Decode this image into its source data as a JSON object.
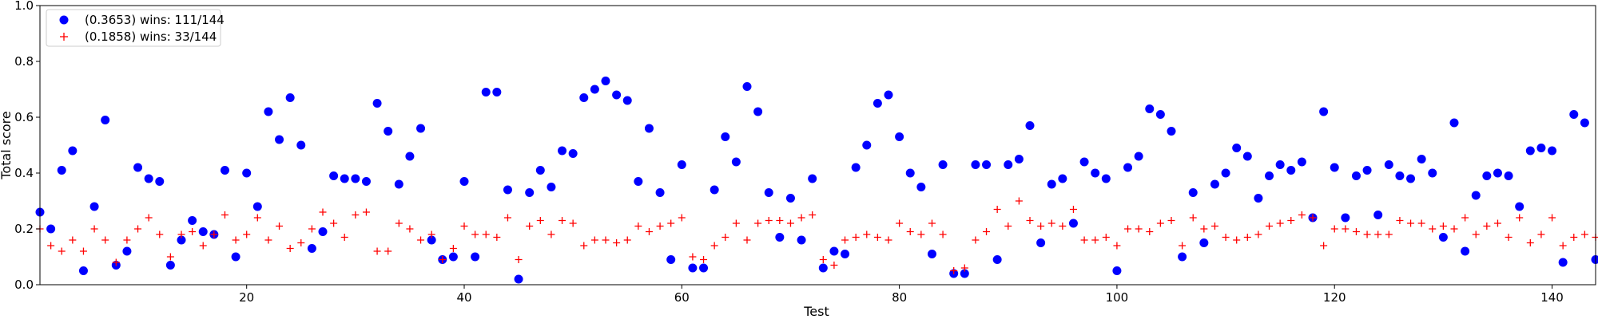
{
  "chart_data": {
    "type": "scatter",
    "xlabel": "Test",
    "ylabel": "Total score",
    "xlim": [
      1,
      144
    ],
    "ylim": [
      0,
      1.0
    ],
    "xticks": [
      20,
      40,
      60,
      80,
      100,
      120,
      140
    ],
    "yticks": [
      0.0,
      0.2,
      0.4,
      0.6,
      0.8,
      1.0
    ],
    "xtick_labels": [
      "20",
      "40",
      "60",
      "80",
      "100",
      "120",
      "140"
    ],
    "ytick_labels": [
      "0.0",
      "0.2",
      "0.4",
      "0.6",
      "0.8",
      "1.0"
    ],
    "grid": false,
    "legend_position": "top-left",
    "x": [
      1,
      2,
      3,
      4,
      5,
      6,
      7,
      8,
      9,
      10,
      11,
      12,
      13,
      14,
      15,
      16,
      17,
      18,
      19,
      20,
      21,
      22,
      23,
      24,
      25,
      26,
      27,
      28,
      29,
      30,
      31,
      32,
      33,
      34,
      35,
      36,
      37,
      38,
      39,
      40,
      41,
      42,
      43,
      44,
      45,
      46,
      47,
      48,
      49,
      50,
      51,
      52,
      53,
      54,
      55,
      56,
      57,
      58,
      59,
      60,
      61,
      62,
      63,
      64,
      65,
      66,
      67,
      68,
      69,
      70,
      71,
      72,
      73,
      74,
      75,
      76,
      77,
      78,
      79,
      80,
      81,
      82,
      83,
      84,
      85,
      86,
      87,
      88,
      89,
      90,
      91,
      92,
      93,
      94,
      95,
      96,
      97,
      98,
      99,
      100,
      101,
      102,
      103,
      104,
      105,
      106,
      107,
      108,
      109,
      110,
      111,
      112,
      113,
      114,
      115,
      116,
      117,
      118,
      119,
      120,
      121,
      122,
      123,
      124,
      125,
      126,
      127,
      128,
      129,
      130,
      131,
      132,
      133,
      134,
      135,
      136,
      137,
      138,
      139,
      140,
      141,
      142,
      143,
      144
    ],
    "series": [
      {
        "name": "(0.3653) wins: 111/144",
        "marker": "circle",
        "color": "#0000ff",
        "values": [
          0.26,
          0.2,
          0.41,
          0.48,
          0.05,
          0.28,
          0.59,
          0.07,
          0.12,
          0.42,
          0.38,
          0.37,
          0.07,
          0.16,
          0.23,
          0.19,
          0.18,
          0.41,
          0.1,
          0.4,
          0.28,
          0.62,
          0.52,
          0.67,
          0.5,
          0.13,
          0.19,
          0.39,
          0.38,
          0.38,
          0.37,
          0.65,
          0.55,
          0.36,
          0.46,
          0.56,
          0.16,
          0.09,
          0.1,
          0.37,
          0.1,
          0.69,
          0.69,
          0.34,
          0.02,
          0.33,
          0.41,
          0.35,
          0.48,
          0.47,
          0.67,
          0.7,
          0.73,
          0.68,
          0.66,
          0.37,
          0.56,
          0.33,
          0.09,
          0.43,
          0.06,
          0.06,
          0.34,
          0.53,
          0.44,
          0.71,
          0.62,
          0.33,
          0.17,
          0.31,
          0.16,
          0.38,
          0.06,
          0.12,
          0.11,
          0.42,
          0.5,
          0.65,
          0.68,
          0.53,
          0.4,
          0.35,
          0.11,
          0.43,
          0.04,
          0.04,
          0.43,
          0.43,
          0.09,
          0.43,
          0.45,
          0.57,
          0.15,
          0.36,
          0.38,
          0.22,
          0.44,
          0.4,
          0.38,
          0.05,
          0.42,
          0.46,
          0.63,
          0.61,
          0.55,
          0.1,
          0.33,
          0.15,
          0.36,
          0.4,
          0.49,
          0.46,
          0.31,
          0.39,
          0.43,
          0.41,
          0.44,
          0.24,
          0.62,
          0.42,
          0.24,
          0.39,
          0.41,
          0.25,
          0.43,
          0.39,
          0.38,
          0.45,
          0.4,
          0.17,
          0.58,
          0.12,
          0.32,
          0.39,
          0.4,
          0.39,
          0.28,
          0.48,
          0.49,
          0.48,
          0.08,
          0.61,
          0.58,
          0.09
        ]
      },
      {
        "name": "(0.1858) wins: 33/144",
        "marker": "plus",
        "color": "#ff0000",
        "values": [
          0.2,
          0.14,
          0.12,
          0.16,
          0.12,
          0.2,
          0.16,
          0.08,
          0.16,
          0.2,
          0.24,
          0.18,
          0.1,
          0.18,
          0.19,
          0.14,
          0.18,
          0.25,
          0.16,
          0.18,
          0.24,
          0.16,
          0.21,
          0.13,
          0.15,
          0.2,
          0.26,
          0.22,
          0.17,
          0.25,
          0.26,
          0.12,
          0.12,
          0.22,
          0.2,
          0.16,
          0.18,
          0.09,
          0.13,
          0.21,
          0.18,
          0.18,
          0.17,
          0.24,
          0.09,
          0.21,
          0.23,
          0.18,
          0.23,
          0.22,
          0.14,
          0.16,
          0.16,
          0.15,
          0.16,
          0.21,
          0.19,
          0.21,
          0.22,
          0.24,
          0.1,
          0.09,
          0.14,
          0.17,
          0.22,
          0.16,
          0.22,
          0.23,
          0.23,
          0.22,
          0.24,
          0.25,
          0.09,
          0.07,
          0.16,
          0.17,
          0.18,
          0.17,
          0.16,
          0.22,
          0.19,
          0.18,
          0.22,
          0.18,
          0.05,
          0.06,
          0.16,
          0.19,
          0.27,
          0.21,
          0.3,
          0.23,
          0.21,
          0.22,
          0.21,
          0.27,
          0.16,
          0.16,
          0.17,
          0.14,
          0.2,
          0.2,
          0.19,
          0.22,
          0.23,
          0.14,
          0.24,
          0.2,
          0.21,
          0.17,
          0.16,
          0.17,
          0.18,
          0.21,
          0.22,
          0.23,
          0.25,
          0.24,
          0.14,
          0.2,
          0.2,
          0.19,
          0.18,
          0.18,
          0.18,
          0.23,
          0.22,
          0.22,
          0.2,
          0.21,
          0.2,
          0.24,
          0.18,
          0.21,
          0.22,
          0.17,
          0.24,
          0.15,
          0.18,
          0.24,
          0.14,
          0.17,
          0.18,
          0.17
        ]
      }
    ]
  }
}
